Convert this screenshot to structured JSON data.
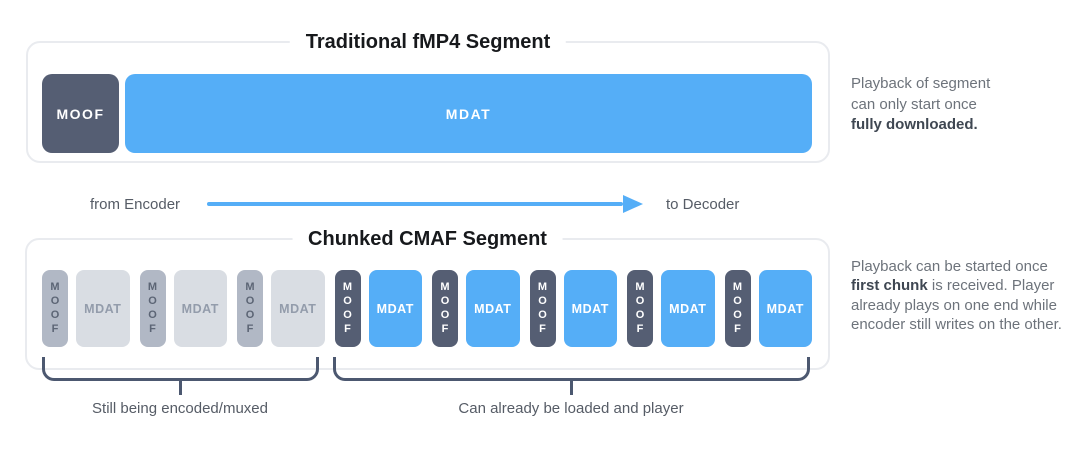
{
  "traditional": {
    "title": "Traditional fMP4 Segment",
    "moof_label": "MOOF",
    "mdat_label": "MDAT",
    "annotation": {
      "line1": "Playback of segment",
      "line2": "can only start once",
      "line3_bold": "fully downloaded."
    }
  },
  "flow": {
    "from_label": "from Encoder",
    "to_label": "to Decoder"
  },
  "chunked": {
    "title": "Chunked CMAF Segment",
    "chunks": [
      {
        "moof": "MOOF",
        "mdat": "MDAT",
        "state": "pending"
      },
      {
        "moof": "MOOF",
        "mdat": "MDAT",
        "state": "pending"
      },
      {
        "moof": "MOOF",
        "mdat": "MDAT",
        "state": "pending"
      },
      {
        "moof": "MOOF",
        "mdat": "MDAT",
        "state": "ready"
      },
      {
        "moof": "MOOF",
        "mdat": "MDAT",
        "state": "ready"
      },
      {
        "moof": "MOOF",
        "mdat": "MDAT",
        "state": "ready"
      },
      {
        "moof": "MOOF",
        "mdat": "MDAT",
        "state": "ready"
      },
      {
        "moof": "MOOF",
        "mdat": "MDAT",
        "state": "ready"
      }
    ],
    "annotation": {
      "text_before": "Playback can be started once ",
      "text_bold": "first chunk",
      "text_after": " is received. Player already plays on one end while encoder still writes on the other."
    },
    "bracket_left_label": "Still being encoded/muxed",
    "bracket_right_label": "Can already be loaded and player"
  },
  "colors": {
    "accent_blue": "#55aef7",
    "dark_slate": "#555e73",
    "pending_moof": "#b1b8c5",
    "pending_mdat": "#d9dde3",
    "bracket": "#4c5870",
    "panel_border": "#e9ebef"
  }
}
